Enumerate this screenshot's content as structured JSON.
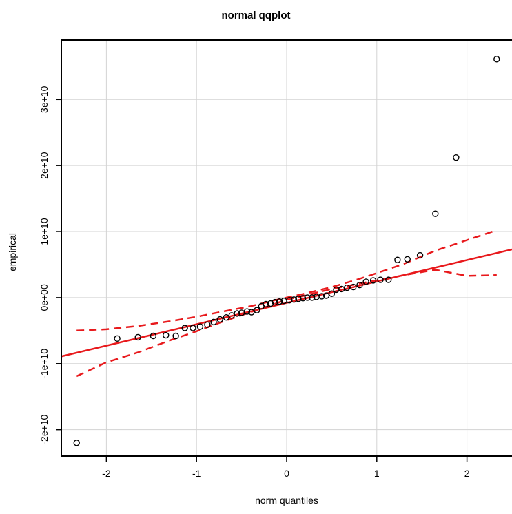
{
  "chart_data": {
    "type": "scatter",
    "title": "normal qqplot",
    "xlabel": "norm quantiles",
    "ylabel": "empirical",
    "xlim": [
      -2.5,
      2.5
    ],
    "ylim": [
      -24000000000.0,
      39000000000.0
    ],
    "grid": true,
    "x_ticks": [
      {
        "value": -2,
        "label": "-2"
      },
      {
        "value": -1,
        "label": "-1"
      },
      {
        "value": 0,
        "label": "0"
      },
      {
        "value": 1,
        "label": "1"
      },
      {
        "value": 2,
        "label": "2"
      }
    ],
    "y_ticks": [
      {
        "value": -20000000000.0,
        "label": "-2e+10"
      },
      {
        "value": -10000000000.0,
        "label": "-1e+10"
      },
      {
        "value": 0,
        "label": "0e+00"
      },
      {
        "value": 10000000000.0,
        "label": "1e+10"
      },
      {
        "value": 20000000000.0,
        "label": "2e+10"
      },
      {
        "value": 30000000000.0,
        "label": "3e+10"
      }
    ],
    "points": [
      {
        "x": -2.33,
        "y": -22000000000.0
      },
      {
        "x": -1.88,
        "y": -6200000000.0
      },
      {
        "x": -1.65,
        "y": -6000000000.0
      },
      {
        "x": -1.48,
        "y": -5800000000.0
      },
      {
        "x": -1.34,
        "y": -5700000000.0
      },
      {
        "x": -1.23,
        "y": -5800000000.0
      },
      {
        "x": -1.13,
        "y": -4600000000.0
      },
      {
        "x": -1.04,
        "y": -4600000000.0
      },
      {
        "x": -0.96,
        "y": -4400000000.0
      },
      {
        "x": -0.88,
        "y": -4100000000.0
      },
      {
        "x": -0.81,
        "y": -3700000000.0
      },
      {
        "x": -0.74,
        "y": -3300000000.0
      },
      {
        "x": -0.67,
        "y": -3000000000.0
      },
      {
        "x": -0.61,
        "y": -2700000000.0
      },
      {
        "x": -0.55,
        "y": -2400000000.0
      },
      {
        "x": -0.5,
        "y": -2300000000.0
      },
      {
        "x": -0.44,
        "y": -2100000000.0
      },
      {
        "x": -0.39,
        "y": -2200000000.0
      },
      {
        "x": -0.33,
        "y": -1900000000.0
      },
      {
        "x": -0.28,
        "y": -1300000000.0
      },
      {
        "x": -0.23,
        "y": -1000000000.0
      },
      {
        "x": -0.18,
        "y": -900000000.0
      },
      {
        "x": -0.13,
        "y": -700000000.0
      },
      {
        "x": -0.08,
        "y": -600000000.0
      },
      {
        "x": -0.03,
        "y": -500000000.0
      },
      {
        "x": 0.03,
        "y": -400000000.0
      },
      {
        "x": 0.08,
        "y": -300000000.0
      },
      {
        "x": 0.13,
        "y": -200000000.0
      },
      {
        "x": 0.18,
        "y": -100000000.0
      },
      {
        "x": 0.23,
        "y": 0.0
      },
      {
        "x": 0.28,
        "y": 0.0
      },
      {
        "x": 0.33,
        "y": 100000000.0
      },
      {
        "x": 0.39,
        "y": 200000000.0
      },
      {
        "x": 0.44,
        "y": 300000000.0
      },
      {
        "x": 0.5,
        "y": 600000000.0
      },
      {
        "x": 0.55,
        "y": 1200000000.0
      },
      {
        "x": 0.61,
        "y": 1300000000.0
      },
      {
        "x": 0.67,
        "y": 1500000000.0
      },
      {
        "x": 0.74,
        "y": 1600000000.0
      },
      {
        "x": 0.81,
        "y": 1900000000.0
      },
      {
        "x": 0.88,
        "y": 2400000000.0
      },
      {
        "x": 0.96,
        "y": 2600000000.0
      },
      {
        "x": 1.04,
        "y": 2700000000.0
      },
      {
        "x": 1.13,
        "y": 2700000000.0
      },
      {
        "x": 1.23,
        "y": 5700000000.0
      },
      {
        "x": 1.34,
        "y": 5800000000.0
      },
      {
        "x": 1.48,
        "y": 6400000000.0
      },
      {
        "x": 1.65,
        "y": 12700000000.0
      },
      {
        "x": 1.88,
        "y": 21200000000.0
      },
      {
        "x": 2.33,
        "y": 36100000000.0
      }
    ],
    "qq_line": {
      "x": [
        -2.5,
        2.5
      ],
      "y": [
        -8900000000.0,
        7300000000.0
      ],
      "color": "#e8191c"
    },
    "confidence_band": {
      "color": "#e8191c",
      "x": [
        -2.33,
        -2.0,
        -1.65,
        -1.3,
        -1.0,
        -0.7,
        -0.4,
        -0.1,
        0.0,
        0.2,
        0.5,
        0.8,
        1.0,
        1.3,
        1.65,
        2.0,
        2.33
      ],
      "upper": [
        -5000000000.0,
        -4800000000.0,
        -4300000000.0,
        -3600000000.0,
        -2900000000.0,
        -2100000000.0,
        -1300000000.0,
        -300000000.0,
        0.0,
        600000000.0,
        1600000000.0,
        2800000000.0,
        3700000000.0,
        5100000000.0,
        7100000000.0,
        8700000000.0,
        10200000000.0
      ],
      "lower": [
        -11900000000.0,
        -9800000000.0,
        -8300000000.0,
        -6500000000.0,
        -5100000000.0,
        -3600000000.0,
        -2200000000.0,
        -800000000.0,
        -300000000.0,
        300000000.0,
        1300000000.0,
        2100000000.0,
        2600000000.0,
        3400000000.0,
        4200000000.0,
        3300000000.0,
        3400000000.0
      ]
    }
  }
}
